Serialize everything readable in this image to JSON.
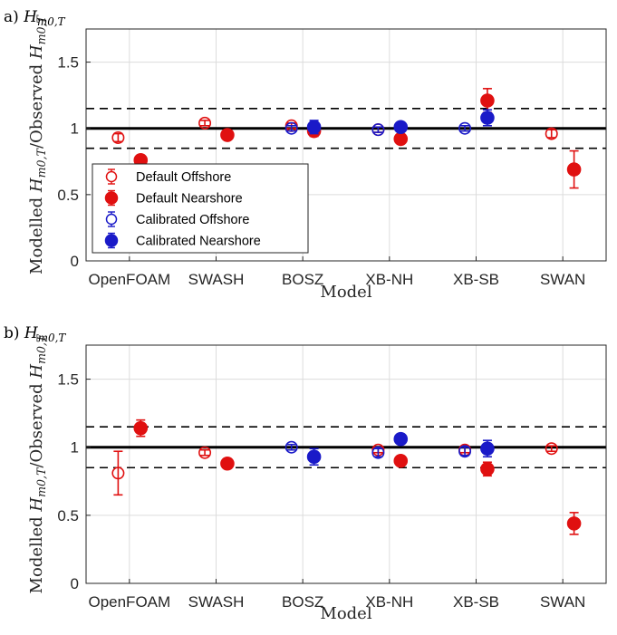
{
  "chart_data": [
    {
      "type": "scatter",
      "panel_label": "a)",
      "panel_label_sub": "H_{m0,T}",
      "title": "",
      "xlabel": "Model",
      "ylabel": "Modelled H_{m0,T}/Observed H_{m0,T}",
      "categories": [
        "OpenFOAM",
        "SWASH",
        "BOSZ",
        "XB-NH",
        "XB-SB",
        "SWAN"
      ],
      "ylim": [
        0,
        1.75
      ],
      "yticks": [
        "0",
        "0.5",
        "1",
        "1.5"
      ],
      "grid": true,
      "reference_line": 1.0,
      "band_lines": [
        0.85,
        1.15
      ],
      "legend": "bottom-left",
      "series": [
        {
          "name": "Default Offshore",
          "color": "#e01010",
          "filled": false,
          "offset": -0.13,
          "values": [
            0.93,
            1.04,
            1.02,
            0.99,
            null,
            0.96
          ],
          "errors": [
            0.03,
            0.02,
            0.02,
            0.02,
            null,
            0.03
          ]
        },
        {
          "name": "Default Nearshore",
          "color": "#e01010",
          "filled": true,
          "offset": 0.13,
          "values": [
            0.76,
            0.95,
            0.98,
            0.92,
            1.21,
            0.69
          ],
          "errors": [
            0.02,
            0.02,
            0.04,
            0.03,
            0.09,
            0.14
          ]
        },
        {
          "name": "Calibrated Offshore",
          "color": "#1a1ac8",
          "filled": false,
          "offset": -0.13,
          "values": [
            null,
            null,
            1.0,
            0.99,
            1.0,
            null
          ],
          "errors": [
            null,
            null,
            0.02,
            0.02,
            0.02,
            null
          ]
        },
        {
          "name": "Calibrated Nearshore",
          "color": "#1a1ac8",
          "filled": true,
          "offset": 0.13,
          "values": [
            null,
            null,
            1.01,
            1.01,
            1.08,
            null
          ],
          "errors": [
            null,
            null,
            0.05,
            0.02,
            0.06,
            null
          ]
        }
      ]
    },
    {
      "type": "scatter",
      "panel_label": "b)",
      "panel_label_sub": "H_{m0,T}",
      "title": "",
      "xlabel": "Model",
      "ylabel": "Modelled H_{m0,T}/Observed H_{m0,T}",
      "categories": [
        "OpenFOAM",
        "SWASH",
        "BOSZ",
        "XB-NH",
        "XB-SB",
        "SWAN"
      ],
      "ylim": [
        0,
        1.75
      ],
      "yticks": [
        "0",
        "0.5",
        "1",
        "1.5"
      ],
      "grid": true,
      "reference_line": 1.0,
      "band_lines": [
        0.85,
        1.15
      ],
      "series": [
        {
          "name": "Default Offshore",
          "color": "#e01010",
          "filled": false,
          "offset": -0.13,
          "values": [
            0.81,
            0.96,
            null,
            0.98,
            0.98,
            0.99
          ],
          "errors": [
            0.16,
            0.02,
            null,
            0.02,
            0.02,
            0.02
          ]
        },
        {
          "name": "Default Nearshore",
          "color": "#e01010",
          "filled": true,
          "offset": 0.13,
          "values": [
            1.14,
            0.88,
            null,
            0.9,
            0.84,
            0.44
          ],
          "errors": [
            0.06,
            0.02,
            null,
            0.03,
            0.05,
            0.08
          ]
        },
        {
          "name": "Calibrated Offshore",
          "color": "#1a1ac8",
          "filled": false,
          "offset": -0.13,
          "values": [
            null,
            null,
            1.0,
            0.96,
            0.97,
            null
          ],
          "errors": [
            null,
            null,
            0.02,
            0.03,
            0.03,
            null
          ]
        },
        {
          "name": "Calibrated Nearshore",
          "color": "#1a1ac8",
          "filled": true,
          "offset": 0.13,
          "values": [
            null,
            null,
            0.93,
            1.06,
            0.99,
            null
          ],
          "errors": [
            null,
            null,
            0.06,
            0.03,
            0.06,
            null
          ]
        }
      ]
    }
  ]
}
